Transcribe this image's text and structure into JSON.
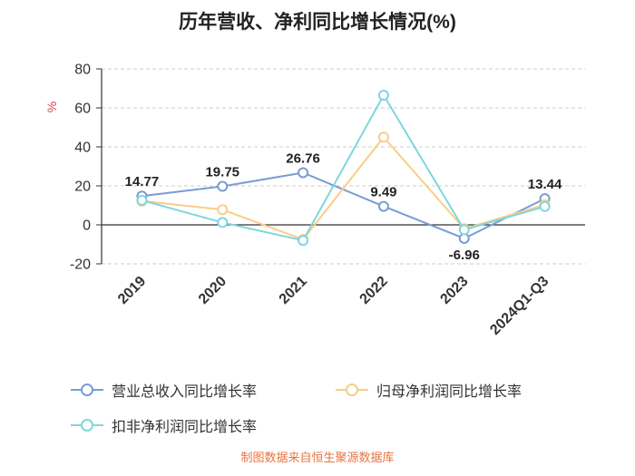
{
  "title": "历年营收、净利同比增长情况(%)",
  "footer": "制图数据来自恒生聚源数据库",
  "colors": {
    "series_revenue": "#7a9cd4",
    "series_net_profit": "#f9cd87",
    "series_non_recurring": "#7fd6dd",
    "axis": "#333333",
    "grid": "#cccccc",
    "percent_label": "#d9444f",
    "footer": "#e8743e",
    "data_label": "#222222"
  },
  "y_axis": {
    "unit_label": "%",
    "ticks": [
      80,
      60,
      40,
      20,
      0,
      -20
    ],
    "min": -20,
    "max": 80
  },
  "chart_data": {
    "type": "line",
    "title": "历年营收、净利同比增长情况(%)",
    "categories": [
      "2019",
      "2020",
      "2021",
      "2022",
      "2023",
      "2024Q1-Q3"
    ],
    "series": [
      {
        "name": "营业总收入同比增长率",
        "color": "#7a9cd4",
        "values": [
          14.77,
          19.75,
          26.76,
          9.49,
          -6.96,
          13.44
        ],
        "labeled": true
      },
      {
        "name": "归母净利润同比增长率",
        "color": "#f9cd87",
        "values": [
          12.2,
          7.8,
          -7.5,
          45.0,
          -2.0,
          10.3
        ],
        "labeled": false
      },
      {
        "name": "扣非净利润同比增长率",
        "color": "#7fd6dd",
        "values": [
          12.6,
          1.2,
          -8.0,
          66.5,
          -2.5,
          9.4
        ],
        "labeled": false
      }
    ],
    "data_labels": [
      "14.77",
      "19.75",
      "26.76",
      "9.49",
      "-6.96",
      "13.44"
    ],
    "ylim": [
      -20,
      80
    ],
    "ylabel": "%",
    "xlabel": "",
    "grid": "dashed-horizontal",
    "marker": "hollow-circle",
    "legend_position": "bottom-left",
    "x_label_rotation": 45
  },
  "legend": {
    "items": [
      {
        "label": "营业总收入同比增长率",
        "color": "#7a9cd4"
      },
      {
        "label": "归母净利润同比增长率",
        "color": "#f9cd87"
      },
      {
        "label": "扣非净利润同比增长率",
        "color": "#7fd6dd"
      }
    ]
  }
}
